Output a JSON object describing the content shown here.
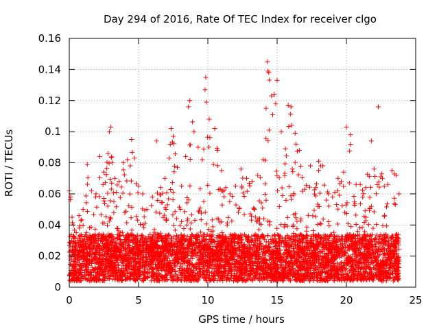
{
  "chart_data": {
    "type": "scatter",
    "title": "Day 294 of 2016, Rate Of TEC Index for receiver clgo",
    "xlabel": "GPS time / hours",
    "ylabel": "ROTI / TECUs",
    "xlim": [
      0,
      25
    ],
    "ylim": [
      0,
      0.16
    ],
    "x_ticks": [
      0,
      5,
      10,
      15,
      20,
      25
    ],
    "x_tick_labels": [
      "0",
      "5",
      "10",
      "15",
      "20",
      "25"
    ],
    "y_ticks": [
      0,
      0.02,
      0.04,
      0.06,
      0.08,
      0.1,
      0.12,
      0.14,
      0.16
    ],
    "y_tick_labels": [
      "0",
      "0.02",
      "0.04",
      "0.06",
      "0.08",
      "0.1",
      "0.12",
      "0.14",
      "0.16"
    ],
    "grid": true,
    "marker": "+",
    "color": "#ff0000",
    "series": [
      {
        "name": "ROTI",
        "note": "dense time series from 0 to ~23.8 h; baseline 0.005-0.03 TECU with spikes",
        "x": [
          0.0,
          0.1,
          0.2,
          0.3,
          0.5,
          0.7,
          1.0,
          1.3,
          1.6,
          1.9,
          2.2,
          2.5,
          2.8,
          2.9,
          3.0,
          3.1,
          3.3,
          3.6,
          3.9,
          4.2,
          4.4,
          4.5,
          4.7,
          5.0,
          5.3,
          5.6,
          6.0,
          6.3,
          6.6,
          6.9,
          7.2,
          7.35,
          7.5,
          7.8,
          8.1,
          8.4,
          8.6,
          8.7,
          9.0,
          9.3,
          9.6,
          9.8,
          9.85,
          9.9,
          10.1,
          10.4,
          10.5,
          10.7,
          11.0,
          11.3,
          11.6,
          12.0,
          12.4,
          12.8,
          13.2,
          13.6,
          14.0,
          14.2,
          14.3,
          14.4,
          14.6,
          14.8,
          14.9,
          15.0,
          15.3,
          15.6,
          15.8,
          16.0,
          16.3,
          16.6,
          17.0,
          17.4,
          17.8,
          18.0,
          18.3,
          18.7,
          19.0,
          19.4,
          19.8,
          20.0,
          20.3,
          20.7,
          21.0,
          21.4,
          21.8,
          22.0,
          22.3,
          22.6,
          23.0,
          23.3,
          23.6,
          23.8
        ],
        "y": [
          0.062,
          0.058,
          0.045,
          0.04,
          0.035,
          0.046,
          0.05,
          0.079,
          0.062,
          0.058,
          0.084,
          0.074,
          0.086,
          0.1,
          0.103,
          0.08,
          0.07,
          0.068,
          0.08,
          0.082,
          0.078,
          0.095,
          0.083,
          0.065,
          0.06,
          0.05,
          0.058,
          0.094,
          0.064,
          0.07,
          0.083,
          0.102,
          0.097,
          0.077,
          0.065,
          0.084,
          0.116,
          0.12,
          0.1,
          0.09,
          0.082,
          0.127,
          0.135,
          0.119,
          0.108,
          0.079,
          0.102,
          0.088,
          0.075,
          0.064,
          0.06,
          0.065,
          0.076,
          0.07,
          0.068,
          0.072,
          0.082,
          0.115,
          0.145,
          0.138,
          0.123,
          0.124,
          0.118,
          0.133,
          0.1,
          0.089,
          0.117,
          0.116,
          0.099,
          0.088,
          0.063,
          0.078,
          0.064,
          0.081,
          0.078,
          0.06,
          0.058,
          0.07,
          0.074,
          0.103,
          0.098,
          0.066,
          0.066,
          0.064,
          0.094,
          0.076,
          0.116,
          0.07,
          0.066,
          0.075,
          0.072,
          0.06
        ]
      }
    ]
  }
}
